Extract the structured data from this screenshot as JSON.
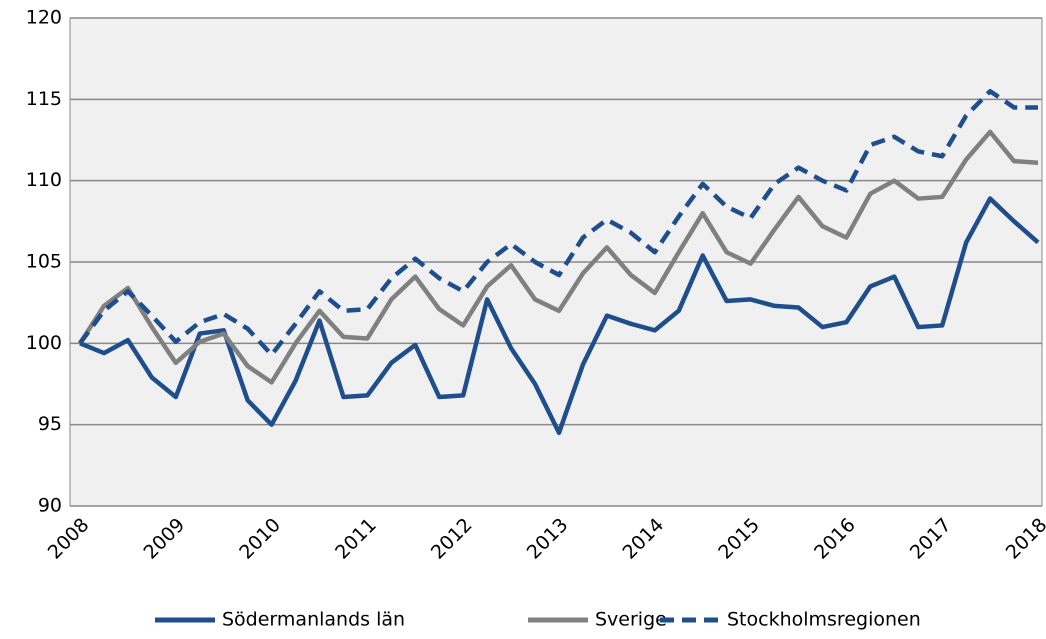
{
  "chart_data": {
    "type": "line",
    "categories": [
      "2008",
      null,
      null,
      null,
      "2009",
      null,
      null,
      null,
      "2010",
      null,
      null,
      null,
      "2011",
      null,
      null,
      null,
      "2012",
      null,
      null,
      null,
      "2013",
      null,
      null,
      null,
      "2014",
      null,
      null,
      null,
      "2015",
      null,
      null,
      null,
      "2016",
      null,
      null,
      null,
      "2017",
      null,
      null,
      null,
      "2018"
    ],
    "series": [
      {
        "name": "Södermanlands län",
        "color": "#1f4e8c",
        "dashed": false,
        "values": [
          100,
          99.4,
          100.2,
          97.9,
          96.7,
          100.6,
          100.8,
          96.5,
          95.0,
          97.7,
          101.4,
          96.7,
          96.8,
          98.8,
          99.9,
          96.7,
          96.8,
          102.7,
          99.7,
          97.5,
          94.5,
          98.7,
          101.7,
          101.2,
          100.8,
          102,
          105.4,
          102.6,
          102.7,
          102.3,
          102.2,
          101,
          101.3,
          103.5,
          104.1,
          101,
          101.1,
          106.2,
          108.9,
          107.5,
          106.2
        ]
      },
      {
        "name": "Sverige",
        "color": "#808080",
        "dashed": false,
        "values": [
          100,
          102.3,
          103.4,
          101,
          98.8,
          100.1,
          100.6,
          98.6,
          97.6,
          100,
          102,
          100.4,
          100.3,
          102.7,
          104.1,
          102.1,
          101.1,
          103.5,
          104.8,
          102.7,
          102,
          104.3,
          105.9,
          104.2,
          103.1,
          105.6,
          108,
          105.6,
          104.9,
          107,
          109,
          107.2,
          106.5,
          109.2,
          110,
          108.9,
          109,
          111.3,
          113,
          111.2,
          111.1
        ]
      },
      {
        "name": "Stockholmsregionen",
        "color": "#1f4e8c",
        "dashed": true,
        "values": [
          100,
          102,
          103.2,
          101.7,
          100.1,
          101.3,
          101.8,
          100.9,
          99.3,
          101.2,
          103.2,
          102,
          102.1,
          104,
          105.2,
          104,
          103.2,
          105,
          106.1,
          105,
          104.2,
          106.5,
          107.6,
          106.8,
          105.6,
          107.8,
          109.8,
          108.4,
          107.7,
          109.8,
          110.8,
          110,
          109.4,
          112.2,
          112.7,
          111.8,
          111.5,
          114,
          115.5,
          114.5,
          114.5
        ]
      }
    ],
    "ylim": [
      90,
      120
    ],
    "yticks": [
      90,
      95,
      100,
      105,
      110,
      115,
      120
    ],
    "grid": true,
    "legend": "bottom"
  }
}
